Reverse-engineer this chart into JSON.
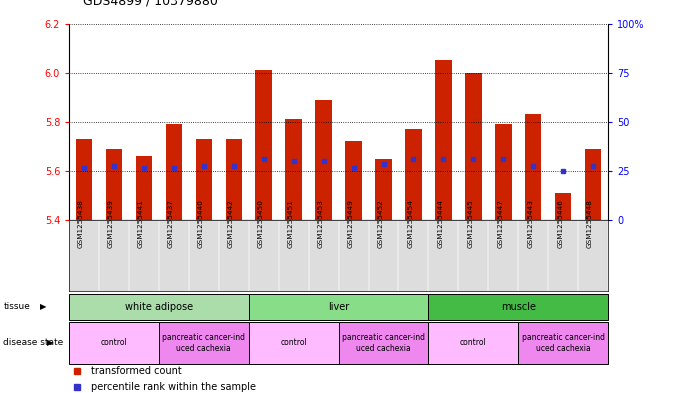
{
  "title": "GDS4899 / 10379880",
  "samples": [
    "GSM1255438",
    "GSM1255439",
    "GSM1255441",
    "GSM1255437",
    "GSM1255440",
    "GSM1255442",
    "GSM1255450",
    "GSM1255451",
    "GSM1255453",
    "GSM1255449",
    "GSM1255452",
    "GSM1255454",
    "GSM1255444",
    "GSM1255445",
    "GSM1255447",
    "GSM1255443",
    "GSM1255446",
    "GSM1255448"
  ],
  "bar_values": [
    5.73,
    5.69,
    5.66,
    5.79,
    5.73,
    5.73,
    6.01,
    5.81,
    5.89,
    5.72,
    5.65,
    5.77,
    6.05,
    6.0,
    5.79,
    5.83,
    5.51,
    5.69
  ],
  "blue_values": [
    5.61,
    5.62,
    5.61,
    5.61,
    5.62,
    5.62,
    5.65,
    5.64,
    5.64,
    5.61,
    5.63,
    5.65,
    5.65,
    5.65,
    5.65,
    5.62,
    5.6,
    5.62
  ],
  "ymin": 5.4,
  "ymax": 6.2,
  "y2min": 0,
  "y2max": 100,
  "yticks_left": [
    5.4,
    5.6,
    5.8,
    6.0,
    6.2
  ],
  "yticks_right": [
    0,
    25,
    50,
    75,
    100
  ],
  "bar_color": "#cc2200",
  "blue_color": "#3333cc",
  "tissue_groups": [
    {
      "label": "white adipose",
      "start": 0,
      "end": 6,
      "color": "#aaddaa"
    },
    {
      "label": "liver",
      "start": 6,
      "end": 12,
      "color": "#88dd88"
    },
    {
      "label": "muscle",
      "start": 12,
      "end": 18,
      "color": "#44bb44"
    }
  ],
  "disease_groups": [
    {
      "label": "control",
      "start": 0,
      "end": 3,
      "color": "#ffbbff"
    },
    {
      "label": "pancreatic cancer-ind\nuced cachexia",
      "start": 3,
      "end": 6,
      "color": "#ee88ee"
    },
    {
      "label": "control",
      "start": 6,
      "end": 9,
      "color": "#ffbbff"
    },
    {
      "label": "pancreatic cancer-ind\nuced cachexia",
      "start": 9,
      "end": 12,
      "color": "#ee88ee"
    },
    {
      "label": "control",
      "start": 12,
      "end": 15,
      "color": "#ffbbff"
    },
    {
      "label": "pancreatic cancer-ind\nuced cachexia",
      "start": 15,
      "end": 18,
      "color": "#ee88ee"
    }
  ],
  "legend_items": [
    {
      "label": "transformed count",
      "color": "#cc2200",
      "marker": "s"
    },
    {
      "label": "percentile rank within the sample",
      "color": "#3333cc",
      "marker": "s"
    }
  ],
  "xlabel_color": "#333333",
  "grid_color": "#000000",
  "sample_bg_color": "#dddddd"
}
